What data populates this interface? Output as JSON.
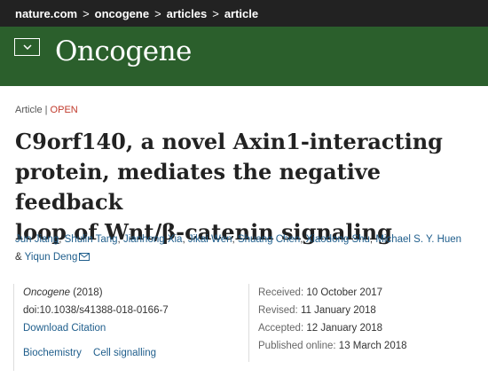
{
  "breadcrumb": {
    "items": [
      "nature.com",
      "oncogene",
      "articles",
      "article"
    ],
    "separator": ">"
  },
  "journal_bar": {
    "menu_icon": "chevron-down-icon",
    "title": "Oncogene",
    "color": "#2b5f2c"
  },
  "article": {
    "type": "Article",
    "type_separator": "|",
    "access": "OPEN",
    "title_lines": [
      "C9orf140, a novel Axin1-interacting",
      "protein, mediates the negative feedback",
      "loop of Wnt/β-catenin signaling"
    ]
  },
  "authors": {
    "list": [
      "Jun Jiang",
      "Shulin Tang",
      "Jianhong Xia",
      "Jikai Wen",
      "Shuang Chen",
      "Xiaodong Shu",
      "Michael S. Y. Huen",
      "Yiqun Deng"
    ],
    "separator": ",",
    "last_joiner": "&",
    "mail_icon": "envelope-icon"
  },
  "citation": {
    "journal": "Oncogene",
    "year": "(2018)",
    "doi": "doi:10.1038/s41388-018-0166-7",
    "download_label": "Download Citation",
    "subjects": [
      "Biochemistry",
      "Cell signalling"
    ]
  },
  "history": {
    "received_label": "Received:",
    "received": "10 October 2017",
    "revised_label": "Revised:",
    "revised": "11 January 2018",
    "accepted_label": "Accepted:",
    "accepted": "12 January 2018",
    "published_label": "Published online:",
    "published": "13 March 2018"
  }
}
